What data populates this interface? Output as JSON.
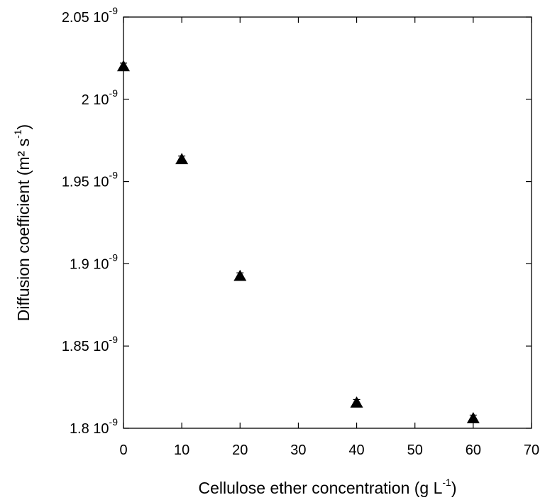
{
  "chart_data": {
    "type": "scatter",
    "marker": "filled-triangle",
    "marker_color": "#000000",
    "grid": false,
    "xlabel": "Cellulose ether concentration (g L",
    "xlabel_exp": "-1",
    "xlabel_suffix": ")",
    "ylabel": "Diffusion coefficient (m² s",
    "ylabel_exp": "-1",
    "ylabel_suffix": ")",
    "xlim": [
      0,
      70
    ],
    "ylim": [
      1.8e-09,
      2.05e-09
    ],
    "x_ticks": [
      {
        "value": 0,
        "label": "0"
      },
      {
        "value": 10,
        "label": "10"
      },
      {
        "value": 20,
        "label": "20"
      },
      {
        "value": 30,
        "label": "30"
      },
      {
        "value": 40,
        "label": "40"
      },
      {
        "value": 50,
        "label": "50"
      },
      {
        "value": 60,
        "label": "60"
      },
      {
        "value": 70,
        "label": "70"
      }
    ],
    "y_ticks": [
      {
        "value": 1.8e-09,
        "mantissa": "1.8 10",
        "exp": "-9"
      },
      {
        "value": 1.85e-09,
        "mantissa": "1.85 10",
        "exp": "-9"
      },
      {
        "value": 1.9e-09,
        "mantissa": "1.9 10",
        "exp": "-9"
      },
      {
        "value": 1.95e-09,
        "mantissa": "1.95 10",
        "exp": "-9"
      },
      {
        "value": 2e-09,
        "mantissa": "2 10",
        "exp": "-9"
      },
      {
        "value": 2.05e-09,
        "mantissa": "2.05 10",
        "exp": "-9"
      }
    ],
    "points": [
      {
        "x": 0,
        "y": 2.02e-09,
        "err": 2e-12
      },
      {
        "x": 10,
        "y": 1.9635e-09,
        "err": 2e-12
      },
      {
        "x": 20,
        "y": 1.8925e-09,
        "err": 2e-12
      },
      {
        "x": 40,
        "y": 1.8155e-09,
        "err": 2e-12
      },
      {
        "x": 60,
        "y": 1.806e-09,
        "err": 2e-12
      }
    ]
  }
}
